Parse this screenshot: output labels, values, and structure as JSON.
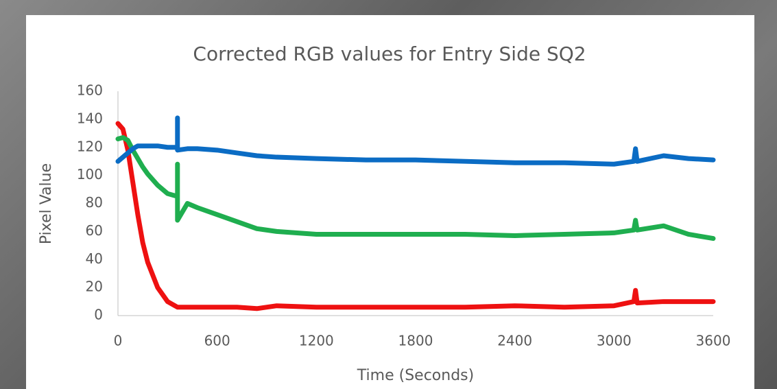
{
  "chart_data": {
    "type": "line",
    "title": "Corrected RGB values for Entry Side SQ2",
    "x_label": "Time (Seconds)",
    "y_label": "Pixel Value",
    "x": [
      0,
      30,
      60,
      90,
      120,
      150,
      180,
      240,
      300,
      360,
      360,
      360,
      420,
      480,
      600,
      720,
      840,
      960,
      1200,
      1500,
      1800,
      2100,
      2400,
      2700,
      3000,
      3120,
      3130,
      3140,
      3300,
      3450,
      3600
    ],
    "series": [
      {
        "color": "#ee1111",
        "values": [
          137,
          133,
          118,
          95,
          72,
          52,
          38,
          20,
          10,
          6,
          6,
          6,
          6,
          6,
          6,
          6,
          5,
          7,
          6,
          6,
          6,
          6,
          7,
          6,
          7,
          10,
          18,
          9,
          10,
          10,
          10
        ]
      },
      {
        "color": "#1fae4f",
        "values": [
          126,
          127,
          125,
          118,
          112,
          106,
          101,
          93,
          87,
          85,
          108,
          68,
          80,
          77,
          72,
          67,
          62,
          60,
          58,
          58,
          58,
          58,
          57,
          58,
          59,
          61,
          68,
          61,
          64,
          58,
          55
        ]
      },
      {
        "color": "#0b6cc4",
        "values": [
          110,
          113,
          116,
          119,
          121,
          121,
          121,
          121,
          120,
          120,
          141,
          118,
          119,
          119,
          118,
          116,
          114,
          113,
          112,
          111,
          111,
          110,
          109,
          109,
          108,
          110,
          119,
          110,
          114,
          112,
          111
        ]
      }
    ],
    "xlim": [
      0,
      3600
    ],
    "xticks": [
      0,
      600,
      1200,
      1800,
      2400,
      3000,
      3600
    ],
    "ylim": [
      0,
      160
    ],
    "yticks": [
      0,
      20,
      40,
      60,
      80,
      100,
      120,
      140,
      160
    ],
    "grid": false
  }
}
